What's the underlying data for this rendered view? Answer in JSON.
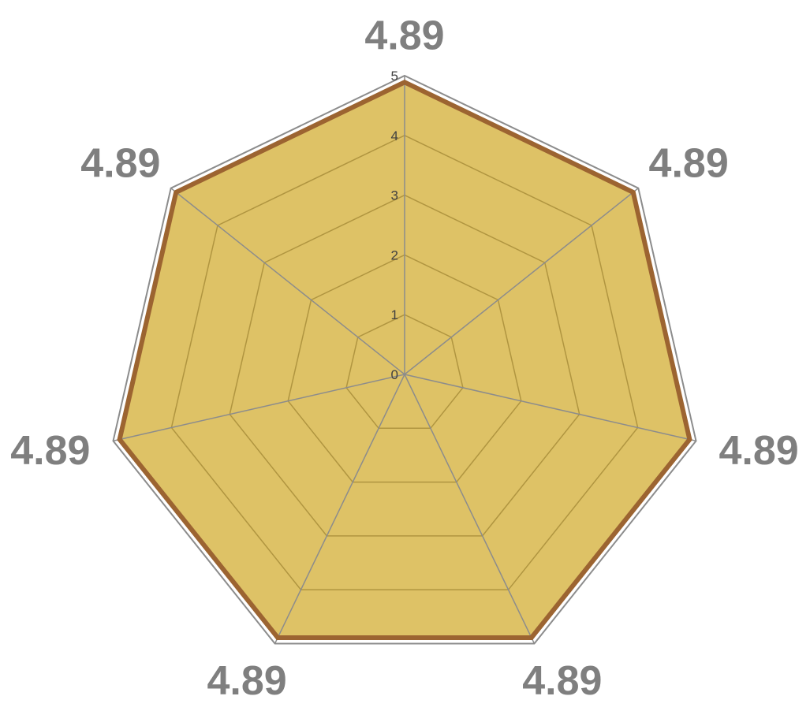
{
  "chart_data": {
    "type": "radar",
    "title": "",
    "categories": [
      "",
      "",
      "",
      "",
      "",
      "",
      ""
    ],
    "series": [
      {
        "values": [
          4.89,
          4.89,
          4.89,
          4.89,
          4.89,
          4.89,
          4.89
        ],
        "fill": "#DEC266",
        "stroke": "#9C6431"
      }
    ],
    "data_labels": [
      "4.89",
      "4.89",
      "4.89",
      "4.89",
      "4.89",
      "4.89",
      "4.89"
    ],
    "rlim": [
      0,
      5
    ],
    "ticks": [
      "0",
      "1",
      "2",
      "3",
      "4",
      "5"
    ],
    "grid": true,
    "legend": "none",
    "colors": {
      "grid_outer": "#8c8c8c",
      "grid_inner": "#B09540",
      "spoke": "#8c8c8c",
      "data_label": "#7f7f7f"
    }
  }
}
